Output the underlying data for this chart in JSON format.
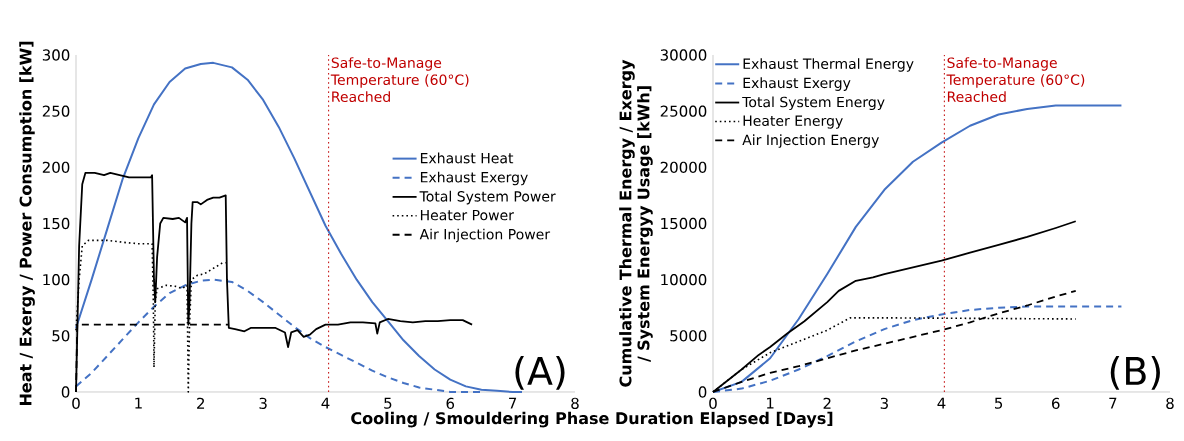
{
  "chart_data": [
    {
      "type": "line",
      "xlabel": "Cooling / Smouldering Phase Duration  Elapsed [Days]",
      "ylabel": "Heat / Exergy / Power Consumption [kW]",
      "xlim": [
        0,
        8
      ],
      "ylim": [
        0,
        300
      ],
      "xticks": [
        0,
        1,
        2,
        3,
        4,
        5,
        6,
        7,
        8
      ],
      "yticks": [
        0,
        50,
        100,
        150,
        200,
        250,
        300
      ],
      "legend": "right",
      "ref_lines": [
        {
          "axis": "x",
          "value": 4.05,
          "label": "Safe-to-Manage Temperature (60°C) Reached",
          "color": "#c00000",
          "line_style": "dotted"
        }
      ],
      "annotations": [
        "(A)"
      ],
      "series": [
        {
          "name": "Exhaust Heat",
          "color": "#4472c4",
          "line_style": "solid",
          "x": [
            0,
            0.25,
            0.5,
            0.75,
            1,
            1.25,
            1.5,
            1.75,
            2,
            2.2,
            2.5,
            2.75,
            3,
            3.25,
            3.5,
            3.75,
            4,
            4.25,
            4.5,
            4.75,
            5,
            5.25,
            5.5,
            5.75,
            6,
            6.25,
            6.5,
            6.75,
            7,
            7.15
          ],
          "values": [
            57,
            100,
            145,
            190,
            226,
            256,
            276,
            288,
            292,
            293,
            289,
            278,
            260,
            236,
            208,
            178,
            148,
            123,
            100,
            80,
            63,
            46,
            32,
            20,
            11,
            5,
            2,
            1,
            0,
            0
          ]
        },
        {
          "name": "Exhaust Exergy",
          "color": "#4472c4",
          "line_style": "dashed",
          "x": [
            0,
            0.25,
            0.5,
            0.75,
            1,
            1.25,
            1.5,
            1.75,
            2,
            2.2,
            2.5,
            2.75,
            3,
            3.25,
            3.5,
            3.75,
            4,
            4.25,
            4.5,
            4.75,
            5,
            5.25,
            5.5,
            5.75,
            6,
            6.5
          ],
          "values": [
            5,
            17,
            32,
            47,
            62,
            76,
            88,
            95,
            99,
            100,
            98,
            90,
            80,
            69,
            58,
            48,
            40,
            33,
            26,
            19,
            13,
            8,
            4,
            2,
            0,
            0
          ]
        },
        {
          "name": "Total System Power",
          "color": "#000000",
          "line_style": "solid",
          "x": [
            0,
            0.05,
            0.1,
            0.15,
            0.3,
            0.45,
            0.55,
            0.7,
            0.85,
            1.0,
            1.2,
            1.22,
            1.25,
            1.27,
            1.3,
            1.35,
            1.4,
            1.55,
            1.65,
            1.75,
            1.78,
            1.8,
            1.82,
            1.85,
            1.87,
            1.95,
            2,
            2.1,
            2.2,
            2.3,
            2.4,
            2.42,
            2.45,
            2.55,
            2.7,
            2.8,
            3,
            3.2,
            3.35,
            3.4,
            3.45,
            3.55,
            3.65,
            3.75,
            3.85,
            4,
            4.2,
            4.4,
            4.6,
            4.8,
            4.83,
            4.87,
            5,
            5.2,
            5.4,
            5.6,
            5.8,
            6,
            6.2,
            6.35
          ],
          "values": [
            0,
            130,
            185,
            195,
            195,
            193,
            195,
            193,
            191,
            191,
            191,
            193,
            100,
            80,
            120,
            150,
            155,
            154,
            155,
            151,
            155,
            60,
            80,
            150,
            169,
            169,
            167,
            171,
            173,
            173,
            175,
            100,
            57,
            56,
            54,
            57,
            57,
            57,
            53,
            40,
            53,
            55,
            49,
            51,
            56,
            60,
            60,
            62,
            62,
            61,
            52,
            62,
            65,
            63,
            62,
            63,
            63,
            64,
            64,
            60
          ]
        },
        {
          "name": "Heater Power",
          "color": "#000000",
          "line_style": "dotted",
          "x": [
            0,
            0.05,
            0.1,
            0.2,
            0.5,
            0.8,
            1.0,
            1.22,
            1.24,
            1.25,
            1.27,
            1.3,
            1.45,
            1.6,
            1.7,
            1.78,
            1.8,
            1.82,
            1.85,
            1.95,
            2.05,
            2.2,
            2.35,
            2.4
          ],
          "values": [
            55,
            100,
            130,
            135,
            135,
            133,
            132,
            132,
            80,
            22,
            80,
            92,
            95,
            94,
            92,
            95,
            0,
            60,
            100,
            104,
            105,
            110,
            115,
            115
          ]
        },
        {
          "name": "Air Injection Power",
          "color": "#000000",
          "line_style": "dashed",
          "x": [
            0,
            0.02,
            2.45
          ],
          "values": [
            0,
            60,
            60
          ]
        }
      ]
    },
    {
      "type": "line",
      "ylabel": "Cumulative Thermal Energy / Exergy / System Energyy Usage [kWh]",
      "xlim": [
        0,
        8
      ],
      "ylim": [
        0,
        30000
      ],
      "xticks": [
        0,
        1,
        2,
        3,
        4,
        5,
        6,
        7,
        8
      ],
      "yticks": [
        0,
        5000,
        10000,
        15000,
        20000,
        25000,
        30000
      ],
      "legend": "top left",
      "ref_lines": [
        {
          "axis": "x",
          "value": 4.05,
          "label": "Safe-to-Manage Temperature (60°C) Reached",
          "color": "#c00000",
          "line_style": "dotted"
        }
      ],
      "annotations": [
        "(B)"
      ],
      "series": [
        {
          "name": "Exhaust Thermal Energy",
          "color": "#4472c4",
          "line_style": "solid",
          "x": [
            0,
            0.5,
            1,
            1.5,
            2,
            2.5,
            3,
            3.5,
            4,
            4.5,
            5,
            5.5,
            6,
            6.5,
            7.15
          ],
          "values": [
            0,
            900,
            3000,
            6500,
            10500,
            14700,
            18000,
            20500,
            22200,
            23700,
            24700,
            25200,
            25500,
            25500,
            25500
          ]
        },
        {
          "name": "Exhaust Exergy",
          "color": "#4472c4",
          "line_style": "dashed",
          "x": [
            0,
            0.5,
            1,
            1.5,
            2,
            2.5,
            3,
            3.5,
            4,
            4.5,
            5,
            5.5,
            6,
            7.15
          ],
          "values": [
            0,
            300,
            1000,
            2000,
            3200,
            4500,
            5600,
            6400,
            6900,
            7300,
            7500,
            7600,
            7600,
            7600
          ]
        },
        {
          "name": "Total System Energy",
          "color": "#000000",
          "line_style": "solid",
          "x": [
            0,
            0.2,
            0.5,
            0.8,
            1,
            1.3,
            1.6,
            2,
            2.2,
            2.5,
            2.8,
            3,
            3.5,
            4,
            4.5,
            5,
            5.5,
            6,
            6.35
          ],
          "values": [
            0,
            800,
            2000,
            3300,
            4000,
            5200,
            6300,
            8000,
            9000,
            9900,
            10200,
            10500,
            11100,
            11700,
            12400,
            13100,
            13800,
            14600,
            15200
          ]
        },
        {
          "name": "Heater Energy",
          "color": "#000000",
          "line_style": "dotted",
          "x": [
            0,
            0.5,
            1,
            1.5,
            2,
            2.4,
            3,
            6.35
          ],
          "values": [
            0,
            2000,
            3500,
            4500,
            5500,
            6600,
            6600,
            6500
          ]
        },
        {
          "name": "Air Injection Energy",
          "color": "#000000",
          "line_style": "dashed",
          "x": [
            0,
            0.5,
            1,
            1.5,
            2,
            2.5,
            3,
            3.5,
            4,
            4.5,
            5,
            5.5,
            6,
            6.35
          ],
          "values": [
            0,
            900,
            1700,
            2300,
            3000,
            3700,
            4300,
            4900,
            5500,
            6200,
            7000,
            7700,
            8500,
            9000
          ]
        }
      ]
    }
  ]
}
